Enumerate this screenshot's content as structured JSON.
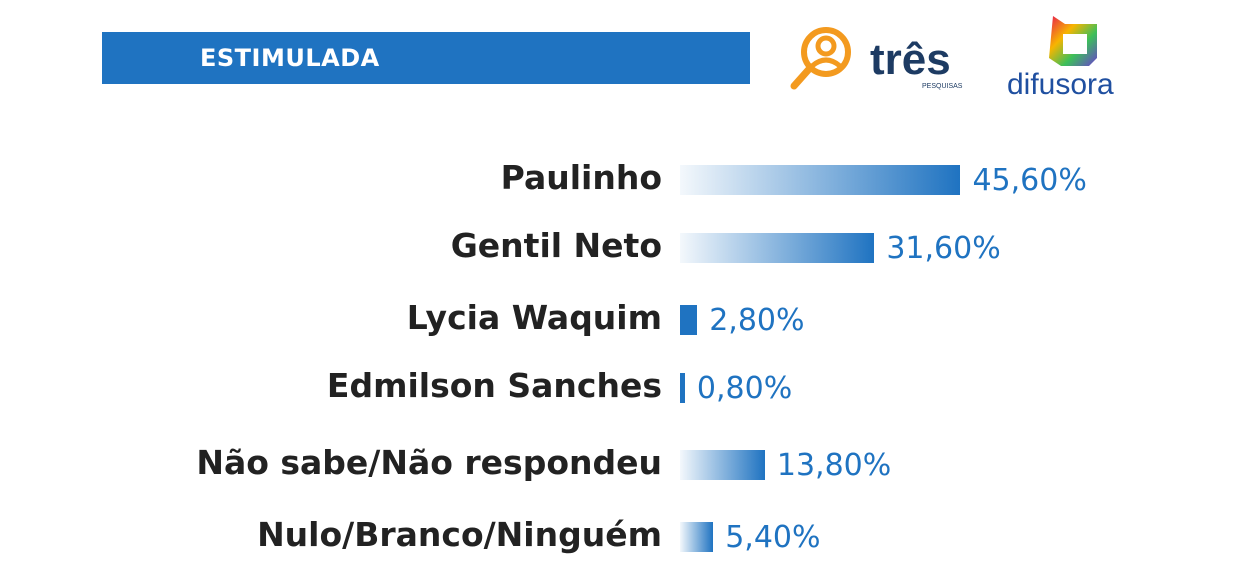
{
  "header": {
    "title": "ESTIMULADA"
  },
  "logos": {
    "tres": "três",
    "tres_sub": "PESQUISAS",
    "difusora": "difusora"
  },
  "colors": {
    "bar": "#1f73c1",
    "banner": "#1f73c1",
    "tres_orange": "#f39a1f",
    "tres_navy": "#1d3b63"
  },
  "chart_data": {
    "type": "bar",
    "orientation": "horizontal",
    "title": "ESTIMULADA",
    "categories": [
      "Paulinho",
      "Gentil Neto",
      "Lycia Waquim",
      "Edmilson Sanches",
      "Não sabe/Não respondeu",
      "Nulo/Branco/Ninguém"
    ],
    "values": [
      45.6,
      31.6,
      2.8,
      0.8,
      13.8,
      5.4
    ],
    "labels": [
      "45,60%",
      "31,60%",
      "2,80%",
      "0,80%",
      "13,80%",
      "5,40%"
    ],
    "grid": false
  }
}
